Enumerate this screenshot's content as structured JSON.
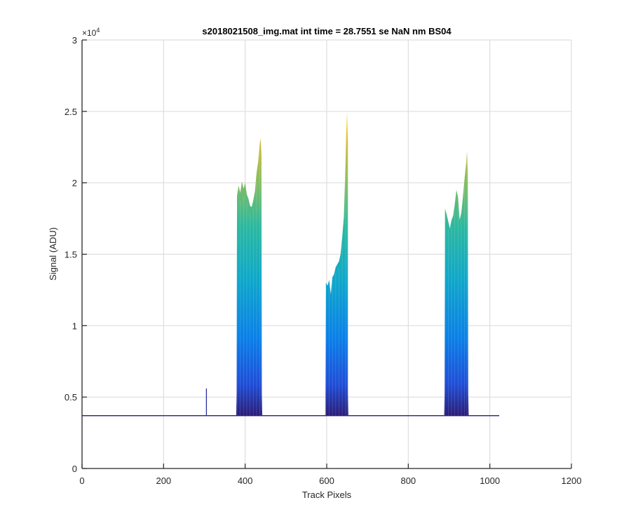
{
  "chart_data": {
    "type": "area",
    "title": "s2018021508_img.mat int time = 28.7551 se  NaN nm BS04",
    "xlabel": "Track Pixels",
    "ylabel": "Signal (ADU)",
    "xlim": [
      0,
      1200
    ],
    "ylim": [
      0,
      30000
    ],
    "x_ticks": [
      0,
      200,
      400,
      600,
      800,
      1000,
      1200
    ],
    "x_tick_labels": [
      "0",
      "200",
      "400",
      "600",
      "800",
      "1000",
      "1200"
    ],
    "y_ticks": [
      0,
      5000,
      10000,
      15000,
      20000,
      25000,
      30000
    ],
    "y_tick_labels": [
      "0",
      "0.5",
      "1",
      "1.5",
      "2",
      "2.5",
      "3"
    ],
    "y_exponent_base": "×10",
    "y_exponent_power": "4",
    "grid": true,
    "baseline": 3700,
    "x_end": 1023,
    "colormap": [
      "#2b1f7a",
      "#1f4ed8",
      "#0a7fe8",
      "#0fa8c9",
      "#2cb8a0",
      "#8cbe5a",
      "#d7ba3a",
      "#f7e020"
    ],
    "spike": {
      "x": 305,
      "y": 5600
    },
    "peaks": [
      {
        "x_start": 378,
        "x_end": 442,
        "top": [
          [
            380,
            19100
          ],
          [
            384,
            19800
          ],
          [
            388,
            19300
          ],
          [
            392,
            20100
          ],
          [
            396,
            19600
          ],
          [
            400,
            20000
          ],
          [
            404,
            19200
          ],
          [
            408,
            18900
          ],
          [
            412,
            18400
          ],
          [
            416,
            18300
          ],
          [
            420,
            18800
          ],
          [
            424,
            19400
          ],
          [
            428,
            20700
          ],
          [
            432,
            21500
          ],
          [
            436,
            22800
          ],
          [
            438,
            23100
          ],
          [
            440,
            21900
          ]
        ]
      },
      {
        "x_start": 597,
        "x_end": 653,
        "top": [
          [
            598,
            13000
          ],
          [
            602,
            12800
          ],
          [
            606,
            13200
          ],
          [
            610,
            12200
          ],
          [
            614,
            13400
          ],
          [
            618,
            13600
          ],
          [
            622,
            14100
          ],
          [
            626,
            14300
          ],
          [
            630,
            14500
          ],
          [
            634,
            15000
          ],
          [
            638,
            16200
          ],
          [
            642,
            17600
          ],
          [
            646,
            21200
          ],
          [
            648,
            23700
          ],
          [
            650,
            25000
          ],
          [
            652,
            22900
          ]
        ]
      },
      {
        "x_start": 888,
        "x_end": 948,
        "top": [
          [
            890,
            18200
          ],
          [
            894,
            17800
          ],
          [
            898,
            17300
          ],
          [
            902,
            16800
          ],
          [
            906,
            17400
          ],
          [
            910,
            17700
          ],
          [
            914,
            18500
          ],
          [
            918,
            19500
          ],
          [
            922,
            19000
          ],
          [
            926,
            17400
          ],
          [
            930,
            17900
          ],
          [
            934,
            19000
          ],
          [
            938,
            20300
          ],
          [
            942,
            21400
          ],
          [
            944,
            22200
          ],
          [
            946,
            20600
          ]
        ]
      }
    ]
  }
}
